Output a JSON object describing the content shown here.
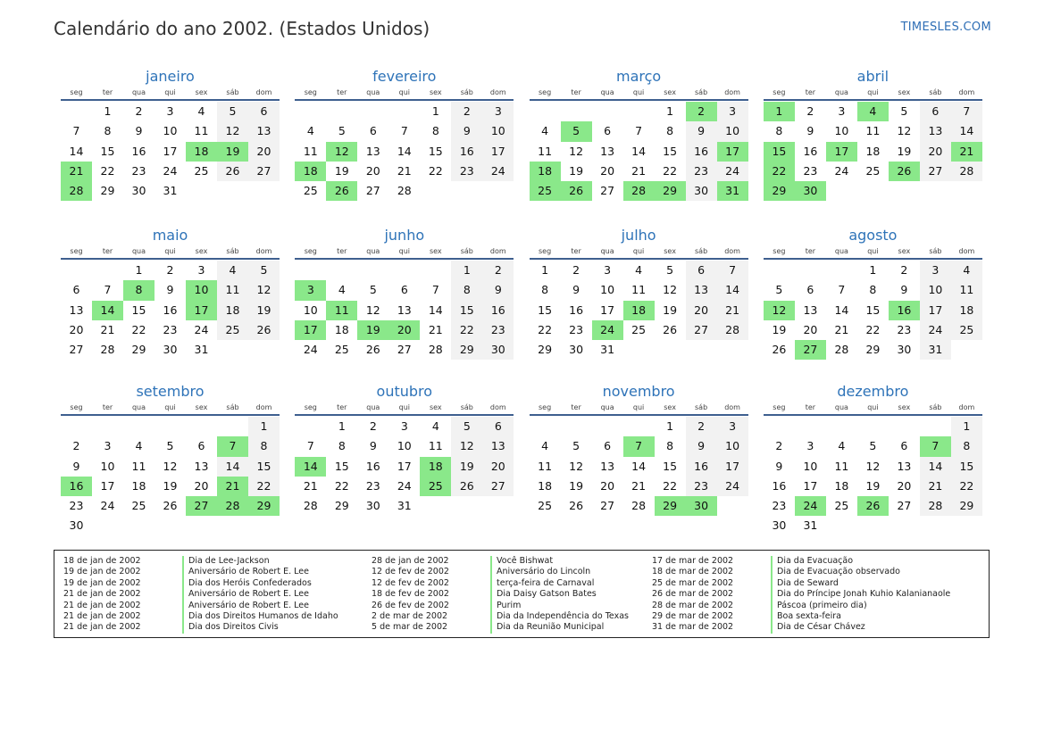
{
  "header": {
    "title": "Calendário do ano 2002. (Estados Unidos)",
    "brand": "TIMESLES.COM"
  },
  "weekday_labels": [
    "seg",
    "ter",
    "qua",
    "qui",
    "sex",
    "sáb",
    "dom"
  ],
  "months": [
    {
      "name": "janeiro",
      "offset": 1,
      "days": 31,
      "holidays": [
        18,
        19,
        21,
        28
      ]
    },
    {
      "name": "fevereiro",
      "offset": 4,
      "days": 28,
      "holidays": [
        12,
        18,
        26
      ]
    },
    {
      "name": "março",
      "offset": 4,
      "days": 31,
      "holidays": [
        2,
        5,
        17,
        18,
        25,
        26,
        28,
        29,
        31
      ]
    },
    {
      "name": "abril",
      "offset": 0,
      "days": 30,
      "holidays": [
        1,
        4,
        15,
        17,
        21,
        22,
        26,
        29,
        30
      ]
    },
    {
      "name": "maio",
      "offset": 2,
      "days": 31,
      "holidays": [
        8,
        10,
        14,
        17
      ]
    },
    {
      "name": "junho",
      "offset": 5,
      "days": 30,
      "holidays": [
        3,
        11,
        17,
        19,
        20
      ]
    },
    {
      "name": "julho",
      "offset": 0,
      "days": 31,
      "holidays": [
        18,
        24
      ]
    },
    {
      "name": "agosto",
      "offset": 3,
      "days": 31,
      "holidays": [
        12,
        16,
        27
      ]
    },
    {
      "name": "setembro",
      "offset": 6,
      "days": 30,
      "holidays": [
        7,
        16,
        21,
        27,
        28,
        29
      ]
    },
    {
      "name": "outubro",
      "offset": 1,
      "days": 31,
      "holidays": [
        14,
        18,
        25
      ]
    },
    {
      "name": "novembro",
      "offset": 4,
      "days": 30,
      "holidays": [
        7,
        29,
        30
      ]
    },
    {
      "name": "dezembro",
      "offset": 6,
      "days": 31,
      "holidays": [
        7,
        24,
        26
      ]
    }
  ],
  "holiday_list": [
    [
      {
        "date": "18 de jan de 2002",
        "name": "Dia de Lee-Jackson"
      },
      {
        "date": "19 de jan de 2002",
        "name": "Aniversário de Robert E. Lee"
      },
      {
        "date": "19 de jan de 2002",
        "name": "Dia dos Heróis Confederados"
      },
      {
        "date": "21 de jan de 2002",
        "name": "Aniversário de Robert E. Lee"
      },
      {
        "date": "21 de jan de 2002",
        "name": "Aniversário de Robert E. Lee"
      },
      {
        "date": "21 de jan de 2002",
        "name": "Dia dos Direitos Humanos de Idaho"
      },
      {
        "date": "21 de jan de 2002",
        "name": "Dia dos Direitos Civis"
      }
    ],
    [
      {
        "date": "28 de jan de 2002",
        "name": "Você Bishwat"
      },
      {
        "date": "12 de fev de 2002",
        "name": "Aniversário do Lincoln"
      },
      {
        "date": "12 de fev de 2002",
        "name": "terça-feira de Carnaval"
      },
      {
        "date": "18 de fev de 2002",
        "name": "Dia Daisy Gatson Bates"
      },
      {
        "date": "26 de fev de 2002",
        "name": "Purim"
      },
      {
        "date": "2 de mar de 2002",
        "name": "Dia da Independência do Texas"
      },
      {
        "date": "5 de mar de 2002",
        "name": "Dia da Reunião Municipal"
      }
    ],
    [
      {
        "date": "17 de mar de 2002",
        "name": "Dia da Evacuação"
      },
      {
        "date": "18 de mar de 2002",
        "name": "Dia de Evacuação observado"
      },
      {
        "date": "25 de mar de 2002",
        "name": "Dia de Seward"
      },
      {
        "date": "26 de mar de 2002",
        "name": "Dia do Príncipe Jonah Kuhio Kalanianaole"
      },
      {
        "date": "28 de mar de 2002",
        "name": "Páscoa (primeiro dia)"
      },
      {
        "date": "29 de mar de 2002",
        "name": "Boa sexta-feira"
      },
      {
        "date": "31 de mar de 2002",
        "name": "Dia de César Chávez"
      }
    ]
  ],
  "colors": {
    "holiday": "#8ae88a",
    "weekend": "#f2f2f2",
    "month_title": "#2e73b8",
    "rule": "#3e5f8f"
  }
}
